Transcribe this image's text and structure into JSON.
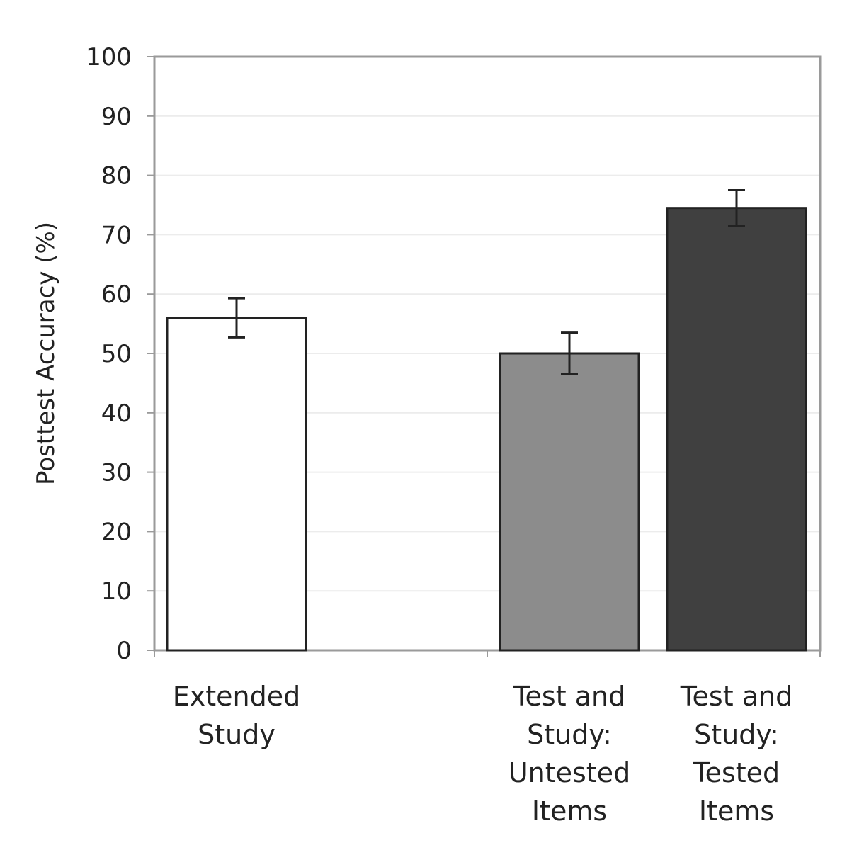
{
  "chart_data": {
    "type": "bar",
    "title": "",
    "xlabel": "",
    "ylabel": "Posttest Accuracy (%)",
    "ylim": [
      0,
      100
    ],
    "yticks": [
      0,
      10,
      20,
      30,
      40,
      50,
      60,
      70,
      80,
      90,
      100
    ],
    "grid": true,
    "legend": "none",
    "categories": [
      {
        "label_lines": [
          "Extended",
          "Study"
        ],
        "value": 56,
        "error": 3.3,
        "color": "#ffffff",
        "group": 0
      },
      {
        "label_lines": [
          "Test and",
          "Study:",
          "Untested",
          "Items"
        ],
        "value": 50,
        "error": 3.5,
        "color": "#8c8c8c",
        "group": 1
      },
      {
        "label_lines": [
          "Test and",
          "Study:",
          "Tested",
          "Items"
        ],
        "value": 74.5,
        "error": 3.0,
        "color": "#404040",
        "group": 1
      }
    ]
  }
}
